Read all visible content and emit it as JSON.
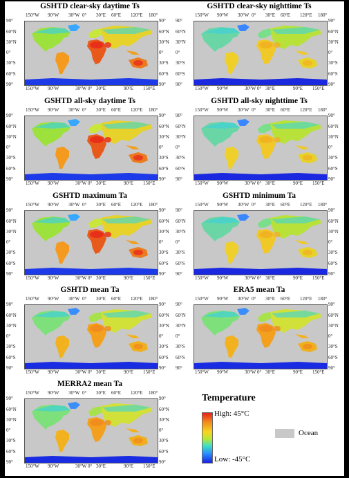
{
  "panels": [
    {
      "title": "GSHTD clear-sky daytime Ts",
      "scheme": "hot"
    },
    {
      "title": "GSHTD clear-sky nighttime Ts",
      "scheme": "cool"
    },
    {
      "title": "GSHTD all-sky daytime Ts",
      "scheme": "hot"
    },
    {
      "title": "GSHTD all-sky nighttime Ts",
      "scheme": "cool"
    },
    {
      "title": "GSHTD maximum Ta",
      "scheme": "hot"
    },
    {
      "title": "GSHTD minimum Ta",
      "scheme": "cool"
    },
    {
      "title": "GSHTD mean Ta",
      "scheme": "mean"
    },
    {
      "title": "ERA5 mean Ta",
      "scheme": "mean"
    },
    {
      "title": "MERRA2 mean Ta",
      "scheme": "mean"
    }
  ],
  "axes": {
    "lon_labels": [
      "150°W",
      "90°W",
      "30°W",
      "0°",
      "30°E",
      "60°E",
      "120°E",
      "180°"
    ],
    "lon_labels_bottom": [
      "150°W",
      "90°W",
      "30°W 0°",
      "30°E",
      "90°E",
      "150°E"
    ],
    "lat_labels": [
      "90°",
      "60°N",
      "30°N",
      "0°",
      "30°S",
      "60°S",
      "90°"
    ]
  },
  "legend": {
    "title": "Temperature",
    "high": "High: 45°C",
    "low": "Low: -45°C",
    "ocean": "Ocean",
    "colors": {
      "high": "#e8201a",
      "mid": "#f7d51f",
      "low": "#1a22e0",
      "ocean": "#c8c8c8"
    }
  }
}
